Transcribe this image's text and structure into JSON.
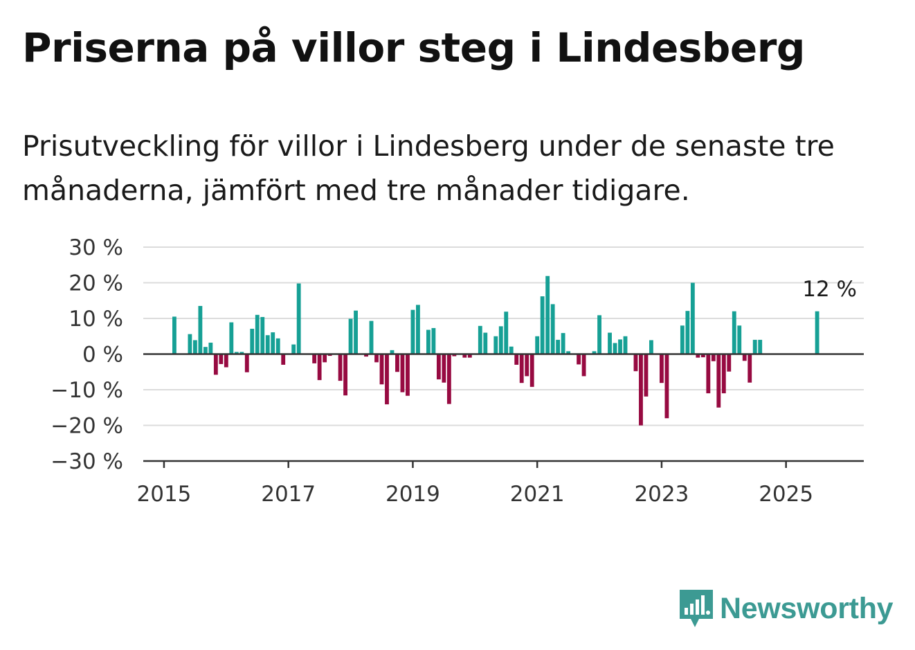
{
  "title": "Priserna på villor steg i Lindesberg",
  "subtitle": "Prisutveckling för villor i Lindesberg under de senaste tre månaderna, jämfört med tre månader tidigare.",
  "brand": {
    "name": "Newsworthy",
    "icon": "newsworthy-logo-icon"
  },
  "colors": {
    "positive": "#16a095",
    "negative": "#970a41",
    "grid": "#dcdcdc",
    "axis": "#333333"
  },
  "chart_data": {
    "type": "bar",
    "y_ticks": [
      {
        "value": 30,
        "label": "30 %"
      },
      {
        "value": 20,
        "label": "20 %"
      },
      {
        "value": 10,
        "label": "10 %"
      },
      {
        "value": 0,
        "label": "0 %"
      },
      {
        "value": -10,
        "label": "−10 %"
      },
      {
        "value": -20,
        "label": "−20 %"
      },
      {
        "value": -30,
        "label": "−30 %"
      }
    ],
    "x_ticks": [
      "2015",
      "2017",
      "2019",
      "2021",
      "2023",
      "2025"
    ],
    "ylim": [
      -30,
      30
    ],
    "xlim": [
      "2014-09",
      "2026-04"
    ],
    "grid": true,
    "annotation": {
      "x": "2025-07",
      "text": "12 %"
    },
    "x": [
      "2015-01",
      "2015-02",
      "2015-03",
      "2015-04",
      "2015-05",
      "2015-06",
      "2015-07",
      "2015-08",
      "2015-09",
      "2015-10",
      "2015-11",
      "2015-12",
      "2016-01",
      "2016-02",
      "2016-03",
      "2016-04",
      "2016-05",
      "2016-06",
      "2016-07",
      "2016-08",
      "2016-09",
      "2016-10",
      "2016-11",
      "2016-12",
      "2017-01",
      "2017-02",
      "2017-03",
      "2017-04",
      "2017-05",
      "2017-06",
      "2017-07",
      "2017-08",
      "2017-09",
      "2017-10",
      "2017-11",
      "2017-12",
      "2018-01",
      "2018-02",
      "2018-03",
      "2018-04",
      "2018-05",
      "2018-06",
      "2018-07",
      "2018-08",
      "2018-09",
      "2018-10",
      "2018-11",
      "2018-12",
      "2019-01",
      "2019-02",
      "2019-03",
      "2019-04",
      "2019-05",
      "2019-06",
      "2019-07",
      "2019-08",
      "2019-09",
      "2019-10",
      "2019-11",
      "2019-12",
      "2020-01",
      "2020-02",
      "2020-03",
      "2020-04",
      "2020-05",
      "2020-06",
      "2020-07",
      "2020-08",
      "2020-09",
      "2020-10",
      "2020-11",
      "2020-12",
      "2021-01",
      "2021-02",
      "2021-03",
      "2021-04",
      "2021-05",
      "2021-06",
      "2021-07",
      "2021-08",
      "2021-09",
      "2021-10",
      "2021-11",
      "2021-12",
      "2022-01",
      "2022-02",
      "2022-03",
      "2022-04",
      "2022-05",
      "2022-06",
      "2022-07",
      "2022-08",
      "2022-09",
      "2022-10",
      "2022-11",
      "2022-12",
      "2023-01",
      "2023-02",
      "2023-03",
      "2023-04",
      "2023-05",
      "2023-06",
      "2023-07",
      "2023-08",
      "2023-09",
      "2023-10",
      "2023-11",
      "2023-12",
      "2024-01",
      "2024-02",
      "2024-03",
      "2024-04",
      "2024-05",
      "2024-06",
      "2024-07",
      "2024-08",
      "2024-09",
      "2024-10",
      "2024-11",
      "2024-12",
      "2025-01",
      "2025-02",
      "2025-03",
      "2025-04",
      "2025-05",
      "2025-06",
      "2025-07"
    ],
    "values": [
      null,
      null,
      10.5,
      null,
      null,
      5.6,
      3.9,
      13.5,
      2,
      3.2,
      -5.8,
      -2.8,
      -3.7,
      8.9,
      0.6,
      0.6,
      -5.1,
      7.1,
      11,
      10.4,
      5.3,
      6.1,
      4.4,
      -3,
      null,
      2.7,
      19.8,
      null,
      null,
      -2.6,
      -7.3,
      -2.3,
      -0.5,
      null,
      -7.5,
      -11.6,
      9.9,
      12.2,
      null,
      -0.7,
      9.3,
      -2.3,
      -8.5,
      -14.1,
      1.1,
      -5,
      -10.7,
      -11.7,
      12.4,
      13.8,
      null,
      6.8,
      7.3,
      -7.1,
      -8,
      -14,
      -0.6,
      null,
      -1,
      -1,
      null,
      7.9,
      6,
      null,
      5,
      7.8,
      11.9,
      2.1,
      -3,
      -8.1,
      -6.2,
      -9.2,
      5,
      16.2,
      21.9,
      14,
      4,
      5.9,
      0.8,
      null,
      -2.9,
      -6.2,
      null,
      0.8,
      10.9,
      null,
      6,
      3.1,
      4.1,
      5,
      null,
      -4.8,
      -20,
      -11.9,
      3.9,
      null,
      -8.1,
      -18,
      null,
      null,
      8,
      12.1,
      20,
      -1,
      -0.9,
      -11,
      -2,
      -15,
      -11,
      -4.9,
      12,
      8,
      -1.9,
      -8,
      4,
      4,
      null,
      null,
      null,
      null,
      null,
      null,
      null,
      null,
      null,
      null,
      12
    ]
  }
}
